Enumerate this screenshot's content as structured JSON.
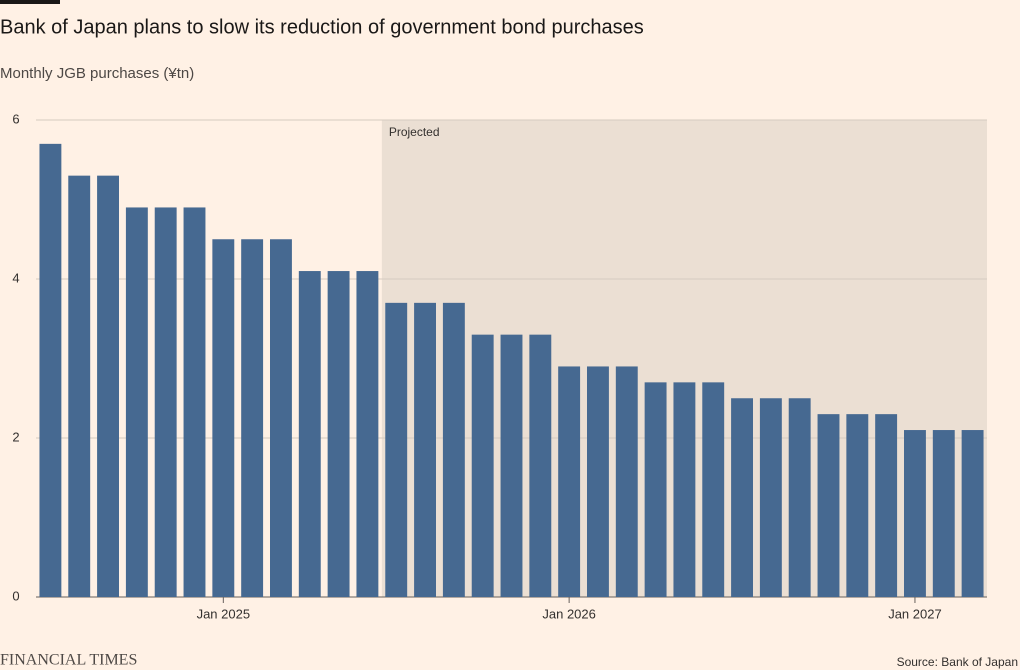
{
  "chart_data": {
    "type": "bar",
    "title": "Bank of Japan plans to slow its reduction of government bond purchases",
    "subtitle": "Monthly JGB purchases (¥tn)",
    "categories": [
      null,
      null,
      null,
      null,
      null,
      null,
      "Jan 2025",
      null,
      null,
      null,
      null,
      null,
      null,
      null,
      null,
      null,
      null,
      null,
      "Jan 2026",
      null,
      null,
      null,
      null,
      null,
      null,
      null,
      null,
      null,
      null,
      null,
      "Jan 2027",
      null,
      null
    ],
    "values": [
      5.7,
      5.3,
      5.3,
      4.9,
      4.9,
      4.9,
      4.5,
      4.5,
      4.5,
      4.1,
      4.1,
      4.1,
      3.7,
      3.7,
      3.7,
      3.3,
      3.3,
      3.3,
      2.9,
      2.9,
      2.9,
      2.7,
      2.7,
      2.7,
      2.5,
      2.5,
      2.5,
      2.3,
      2.3,
      2.3,
      2.1,
      2.1,
      2.1
    ],
    "color": "#466991",
    "ylim": [
      0,
      6
    ],
    "yticks": [
      0,
      2,
      4,
      6
    ],
    "grid": true,
    "shaded_region": {
      "label": "Projected",
      "start_category_index": 12,
      "color": "#ebdfd3"
    },
    "source": "Source: Bank of Japan",
    "brand": "FINANCIAL TIMES"
  }
}
